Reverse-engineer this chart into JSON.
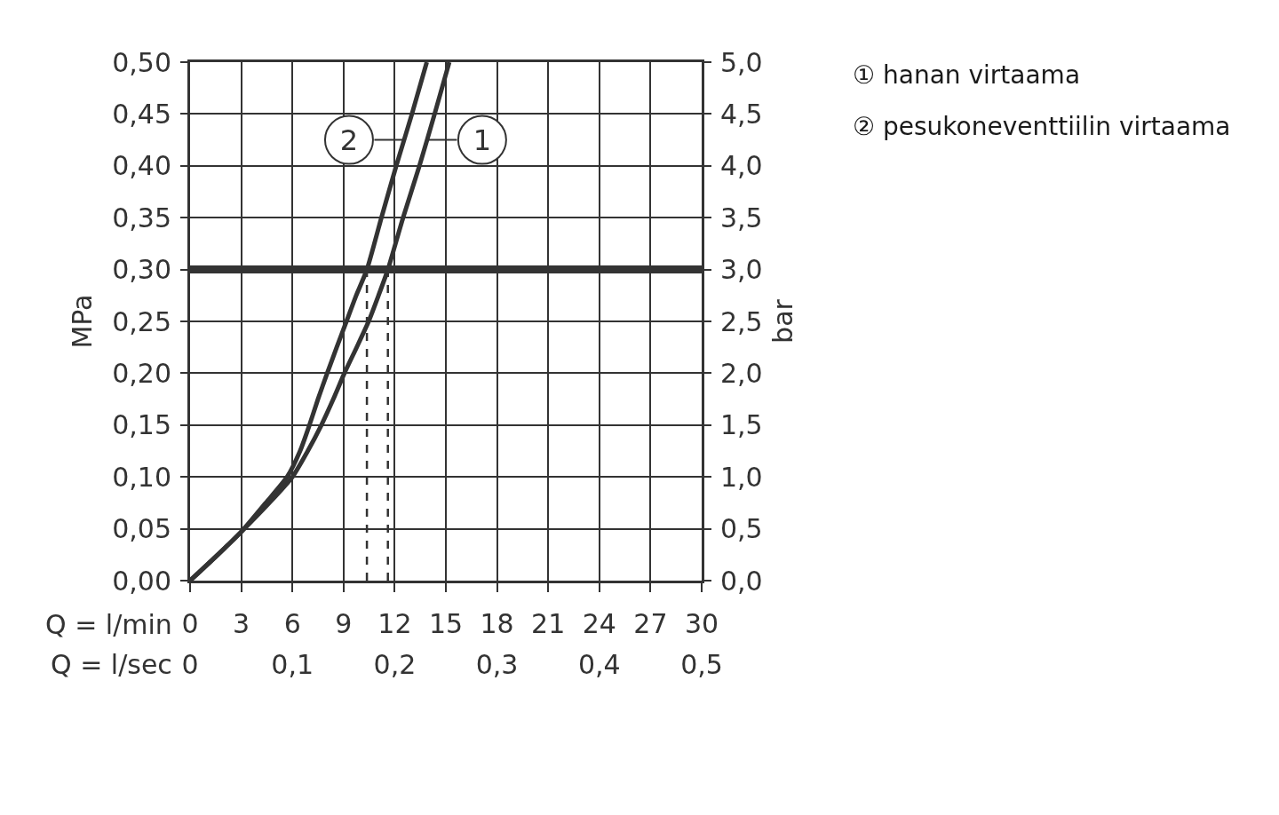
{
  "chart_data": {
    "type": "line",
    "xlabel": "Q = l/min",
    "x2label": "Q = l/sec",
    "ylabel": "MPa",
    "y2label": "bar",
    "xlim": [
      0,
      30
    ],
    "xticks": [
      0,
      3,
      6,
      9,
      12,
      15,
      18,
      21,
      24,
      27,
      30
    ],
    "x2lim": [
      0,
      0.5
    ],
    "x2ticks": [
      0,
      {
        "value": 0.1,
        "label": "0,1"
      },
      {
        "value": 0.2,
        "label": "0,2"
      },
      {
        "value": 0.3,
        "label": "0,3"
      },
      {
        "value": 0.4,
        "label": "0,4"
      },
      {
        "value": 0.5,
        "label": "0,5"
      }
    ],
    "ylim": [
      0,
      0.5
    ],
    "yticks": [
      {
        "value": 0,
        "label": "0,00"
      },
      {
        "value": 0.05,
        "label": "0,05"
      },
      {
        "value": 0.1,
        "label": "0,10"
      },
      {
        "value": 0.15,
        "label": "0,15"
      },
      {
        "value": 0.2,
        "label": "0,20"
      },
      {
        "value": 0.25,
        "label": "0,25"
      },
      {
        "value": 0.3,
        "label": "0,30"
      },
      {
        "value": 0.35,
        "label": "0,35"
      },
      {
        "value": 0.4,
        "label": "0,40"
      },
      {
        "value": 0.45,
        "label": "0,45"
      },
      {
        "value": 0.5,
        "label": "0,50"
      }
    ],
    "y2lim": [
      0,
      5
    ],
    "y2ticks": [
      {
        "value": 0,
        "label": "0,0"
      },
      {
        "value": 0.5,
        "label": "0,5"
      },
      {
        "value": 1,
        "label": "1,0"
      },
      {
        "value": 1.5,
        "label": "1,5"
      },
      {
        "value": 2,
        "label": "2,0"
      },
      {
        "value": 2.5,
        "label": "2,5"
      },
      {
        "value": 3,
        "label": "3,0"
      },
      {
        "value": 3.5,
        "label": "3,5"
      },
      {
        "value": 4,
        "label": "4,0"
      },
      {
        "value": 4.5,
        "label": "4,5"
      },
      {
        "value": 5,
        "label": "5,0"
      }
    ],
    "grid": true,
    "series": [
      {
        "color": "#333333",
        "x": [
          0,
          1.5,
          3,
          4.65,
          6,
          6.9,
          7.7,
          8.4,
          9.05,
          9.77,
          10.47,
          11.05,
          11.6,
          12.49,
          13.45,
          14.34,
          15.2
        ],
        "values": [
          0,
          0.023,
          0.047,
          0.075,
          0.1,
          0.125,
          0.15,
          0.175,
          0.2,
          0.225,
          0.25,
          0.275,
          0.3,
          0.35,
          0.4,
          0.45,
          0.5
        ]
      },
      {
        "color": "#333333",
        "x": [
          0,
          1.5,
          3,
          4.44,
          5.69,
          6.45,
          7.0,
          7.5,
          8.04,
          8.6,
          9.17,
          9.74,
          10.37,
          11.22,
          12.09,
          13.01,
          13.88
        ],
        "values": [
          0,
          0.023,
          0.047,
          0.075,
          0.1,
          0.125,
          0.15,
          0.175,
          0.2,
          0.225,
          0.25,
          0.275,
          0.3,
          0.35,
          0.4,
          0.45,
          0.5
        ]
      },
      {
        "color": "#333333",
        "x": [
          10.37,
          10.37
        ],
        "values": [
          0,
          0.3
        ],
        "line_style": "dashed"
      },
      {
        "color": "#333333",
        "x": [
          11.6,
          11.6
        ],
        "values": [
          0,
          0.3
        ],
        "line_style": "dashed"
      }
    ],
    "ref_lines": [
      {
        "axis": "y",
        "value": 0.3,
        "color": "#333333"
      }
    ],
    "annotations": [
      {
        "text": "1",
        "x": 13.9,
        "y": 0.425
      },
      {
        "text": "2",
        "x": 12.55,
        "y": 0.425
      },
      "① hanan virtaama",
      "② pesukoneventtiilin virtaama"
    ]
  }
}
